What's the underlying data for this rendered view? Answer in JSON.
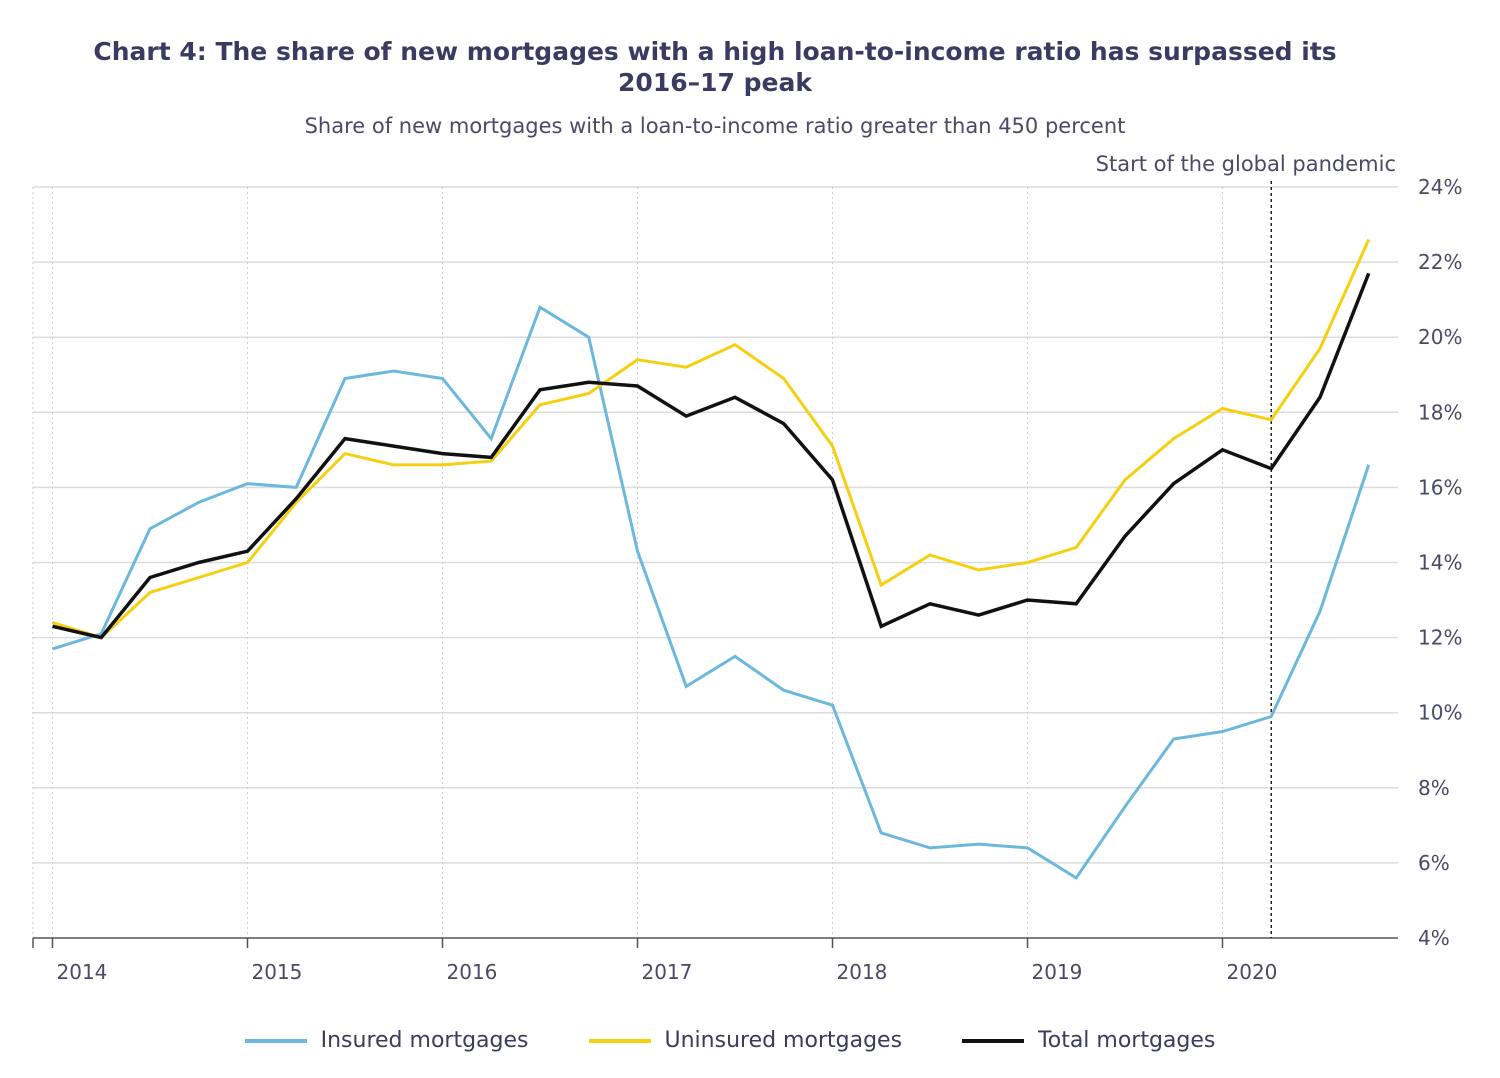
{
  "chart_data": {
    "type": "line",
    "title_line1": "Chart 4: The share of new mortgages with a high loan-to-income ratio has surpassed its",
    "title_line2": "2016–17 peak",
    "subtitle": "Share of new mortgages with a loan-to-income ratio greater than 450 percent",
    "annotation": "Start of the global pandemic",
    "annotation_x": 2020.25,
    "x_ticks": [
      2014,
      2015,
      2016,
      2017,
      2018,
      2019,
      2020
    ],
    "xlim": [
      2013.9,
      2020.9
    ],
    "ylim": [
      4,
      24
    ],
    "y_ticks": [
      4,
      6,
      8,
      10,
      12,
      14,
      16,
      18,
      20,
      22,
      24
    ],
    "y_tick_labels": [
      "4%",
      "6%",
      "8%",
      "10%",
      "12%",
      "14%",
      "16%",
      "18%",
      "20%",
      "22%",
      "24%"
    ],
    "x": [
      2014.0,
      2014.25,
      2014.5,
      2014.75,
      2015.0,
      2015.25,
      2015.5,
      2015.75,
      2016.0,
      2016.25,
      2016.5,
      2016.75,
      2017.0,
      2017.25,
      2017.5,
      2017.75,
      2018.0,
      2018.25,
      2018.5,
      2018.75,
      2019.0,
      2019.25,
      2019.5,
      2019.75,
      2020.0,
      2020.25,
      2020.5,
      2020.75
    ],
    "series": [
      {
        "name": "Insured mortgages",
        "color": "#6cb8dc",
        "values": [
          11.7,
          12.1,
          14.9,
          15.6,
          16.1,
          16.0,
          18.9,
          19.1,
          18.9,
          17.3,
          20.8,
          20.0,
          14.3,
          10.7,
          11.5,
          10.6,
          10.2,
          6.8,
          6.4,
          6.5,
          6.4,
          5.6,
          7.5,
          9.3,
          9.5,
          9.9,
          12.7,
          16.6
        ]
      },
      {
        "name": "Uninsured mortgages",
        "color": "#f5cf10",
        "values": [
          12.4,
          12.0,
          13.2,
          13.6,
          14.0,
          15.6,
          16.9,
          16.6,
          16.6,
          16.7,
          18.2,
          18.5,
          19.4,
          19.2,
          19.8,
          18.9,
          17.1,
          13.4,
          14.2,
          13.8,
          14.0,
          14.4,
          16.2,
          17.3,
          18.1,
          17.8,
          19.7,
          22.6
        ]
      },
      {
        "name": "Total mortgages",
        "color": "#111111",
        "values": [
          12.3,
          12.0,
          13.6,
          14.0,
          14.3,
          15.7,
          17.3,
          17.1,
          16.9,
          16.8,
          18.6,
          18.8,
          18.7,
          17.9,
          18.4,
          17.7,
          16.2,
          12.3,
          12.9,
          12.6,
          13.0,
          12.9,
          14.7,
          16.1,
          17.0,
          16.5,
          18.4,
          21.7
        ]
      }
    ]
  }
}
